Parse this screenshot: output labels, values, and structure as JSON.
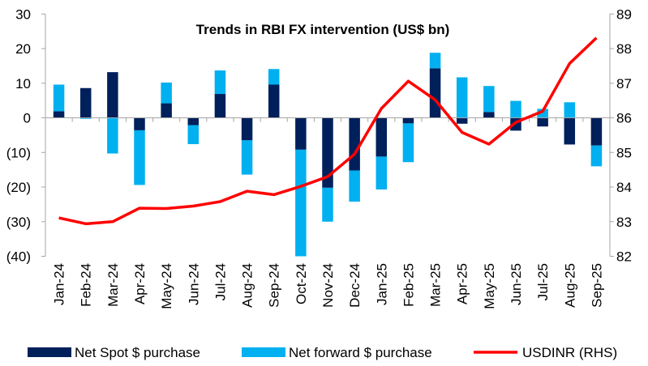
{
  "chart_data": {
    "type": "bar",
    "title": "Trends in RBI FX intervention (US$ bn)",
    "categories": [
      "Jan-24",
      "Feb-24",
      "Mar-24",
      "Apr-24",
      "May-24",
      "Jun-24",
      "Jul-24",
      "Aug-24",
      "Sep-24",
      "Oct-24",
      "Nov-24",
      "Dec-24",
      "Jan-25",
      "Feb-25",
      "Mar-25",
      "Apr-25",
      "May-25",
      "Jun-25",
      "Jul-25",
      "Aug-25",
      "Sep-25"
    ],
    "left_axis": {
      "ylim": [
        -40,
        30
      ],
      "ticks": [
        30,
        20,
        10,
        0,
        -10,
        -20,
        -30,
        -40
      ],
      "tick_labels": [
        "30",
        "20",
        "10",
        "0",
        "(10)",
        "(20)",
        "(30)",
        "(40)"
      ]
    },
    "right_axis": {
      "ylim": [
        82,
        89
      ],
      "ticks": [
        89,
        88,
        87,
        86,
        85,
        84,
        83,
        82
      ],
      "tick_labels": [
        "89",
        "88",
        "87",
        "86",
        "85",
        "84",
        "83",
        "82"
      ]
    },
    "series": [
      {
        "name": "Net Spot $ purchase",
        "type": "stacked-bar",
        "axis": "left",
        "color": "#00205B",
        "values": [
          1.9,
          8.6,
          13.2,
          -3.6,
          4.2,
          -2.1,
          6.9,
          -6.5,
          9.6,
          -9.2,
          -20.2,
          -15.2,
          -11.2,
          -1.6,
          14.3,
          -1.7,
          1.7,
          -3.7,
          -2.5,
          -7.7,
          -8.0
        ]
      },
      {
        "name": "Net forward $ purchase",
        "type": "stacked-bar",
        "axis": "left",
        "color": "#00B0F0",
        "values": [
          7.7,
          -0.3,
          -10.3,
          -15.8,
          6.0,
          -5.5,
          6.8,
          -9.9,
          4.5,
          -30.8,
          -9.8,
          -9.0,
          -9.5,
          -11.2,
          4.5,
          11.7,
          7.5,
          4.9,
          2.6,
          4.5,
          -6.0
        ]
      },
      {
        "name": "USDINR (RHS)",
        "type": "line",
        "axis": "right",
        "color": "#FF0000",
        "values": [
          83.11,
          82.94,
          83.0,
          83.39,
          83.38,
          83.45,
          83.58,
          83.88,
          83.78,
          84.02,
          84.3,
          84.95,
          86.27,
          87.06,
          86.52,
          85.58,
          85.24,
          85.87,
          86.19,
          87.57,
          88.31
        ]
      }
    ],
    "legend_position": "bottom",
    "grid": false
  }
}
